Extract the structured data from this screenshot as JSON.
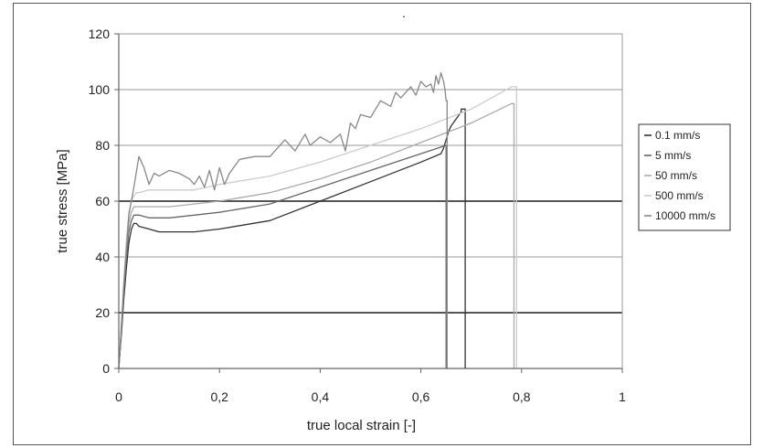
{
  "chart_data": {
    "type": "line",
    "xlabel": "true local strain [-]",
    "ylabel": "true stress [MPa]",
    "xlim": [
      0,
      1
    ],
    "ylim": [
      0,
      120
    ],
    "xticks": [
      0,
      0.2,
      0.4,
      0.6,
      0.8,
      1
    ],
    "xtick_labels": [
      "0",
      "0,2",
      "0,4",
      "0,6",
      "0,8",
      "1"
    ],
    "yticks": [
      0,
      20,
      40,
      60,
      80,
      100,
      120
    ],
    "ytick_labels": [
      "0",
      "20",
      "40",
      "60",
      "80",
      "100",
      "120"
    ],
    "grid": "horizontal",
    "legend_position": "right",
    "series": [
      {
        "name": "0.1 mm/s",
        "color": "#333333",
        "x": [
          0,
          0.005,
          0.01,
          0.015,
          0.02,
          0.025,
          0.03,
          0.035,
          0.04,
          0.06,
          0.08,
          0.1,
          0.15,
          0.2,
          0.3,
          0.4,
          0.5,
          0.6,
          0.64,
          0.645,
          0.65,
          0.655,
          0.66,
          0.68,
          0.68,
          0.685,
          0.688,
          0.688
        ],
        "y": [
          0,
          12,
          25,
          36,
          45,
          50,
          52,
          52,
          51,
          50,
          49,
          49,
          49,
          50,
          53,
          60,
          67,
          74,
          77,
          79,
          82,
          85,
          87,
          92,
          93,
          93,
          93,
          0
        ]
      },
      {
        "name": "5 mm/s",
        "color": "#666666",
        "x": [
          0,
          0.005,
          0.01,
          0.015,
          0.02,
          0.025,
          0.03,
          0.035,
          0.04,
          0.06,
          0.08,
          0.1,
          0.15,
          0.2,
          0.3,
          0.4,
          0.5,
          0.6,
          0.65,
          0.65
        ],
        "y": [
          0,
          14,
          28,
          40,
          49,
          53,
          55,
          55,
          55,
          54,
          54,
          54,
          55,
          56,
          59,
          65,
          71,
          77,
          80,
          0
        ]
      },
      {
        "name": "50 mm/s",
        "color": "#aaaaaa",
        "x": [
          0,
          0.005,
          0.01,
          0.015,
          0.02,
          0.025,
          0.03,
          0.035,
          0.04,
          0.06,
          0.08,
          0.1,
          0.15,
          0.2,
          0.3,
          0.4,
          0.5,
          0.6,
          0.7,
          0.78,
          0.785,
          0.785
        ],
        "y": [
          0,
          15,
          30,
          43,
          52,
          56,
          58,
          58,
          58,
          58,
          58,
          58,
          59,
          60,
          63,
          68,
          74,
          81,
          88,
          95,
          95,
          0
        ]
      },
      {
        "name": "500 mm/s",
        "color": "#cccccc",
        "x": [
          0,
          0.005,
          0.01,
          0.015,
          0.02,
          0.025,
          0.03,
          0.035,
          0.04,
          0.06,
          0.08,
          0.1,
          0.15,
          0.2,
          0.3,
          0.4,
          0.5,
          0.6,
          0.7,
          0.78,
          0.79,
          0.79
        ],
        "y": [
          0,
          16,
          32,
          46,
          56,
          60,
          62,
          63,
          63,
          64,
          64,
          64,
          64,
          66,
          69,
          74,
          80,
          86,
          93,
          101,
          101,
          0
        ]
      },
      {
        "name": "10000 mm/s",
        "color": "#888888",
        "x": [
          0,
          0.01,
          0.02,
          0.03,
          0.04,
          0.05,
          0.06,
          0.07,
          0.08,
          0.1,
          0.12,
          0.14,
          0.15,
          0.16,
          0.17,
          0.18,
          0.19,
          0.2,
          0.21,
          0.22,
          0.24,
          0.27,
          0.3,
          0.33,
          0.35,
          0.37,
          0.38,
          0.4,
          0.42,
          0.44,
          0.45,
          0.46,
          0.47,
          0.48,
          0.5,
          0.52,
          0.54,
          0.55,
          0.56,
          0.58,
          0.59,
          0.6,
          0.61,
          0.62,
          0.625,
          0.63,
          0.635,
          0.64,
          0.645,
          0.648,
          0.65,
          0.652,
          0.652
        ],
        "y": [
          0,
          30,
          55,
          65,
          76,
          72,
          66,
          70,
          69,
          71,
          70,
          68,
          66,
          69,
          65,
          71,
          64,
          72,
          66,
          70,
          75,
          76,
          76,
          82,
          78,
          84,
          80,
          83,
          81,
          84,
          78,
          88,
          86,
          91,
          90,
          96,
          94,
          99,
          97,
          101,
          98,
          103,
          101,
          102,
          99,
          105,
          102,
          106,
          103,
          100,
          96,
          96,
          0
        ]
      }
    ],
    "annotations": [
      "."
    ]
  }
}
